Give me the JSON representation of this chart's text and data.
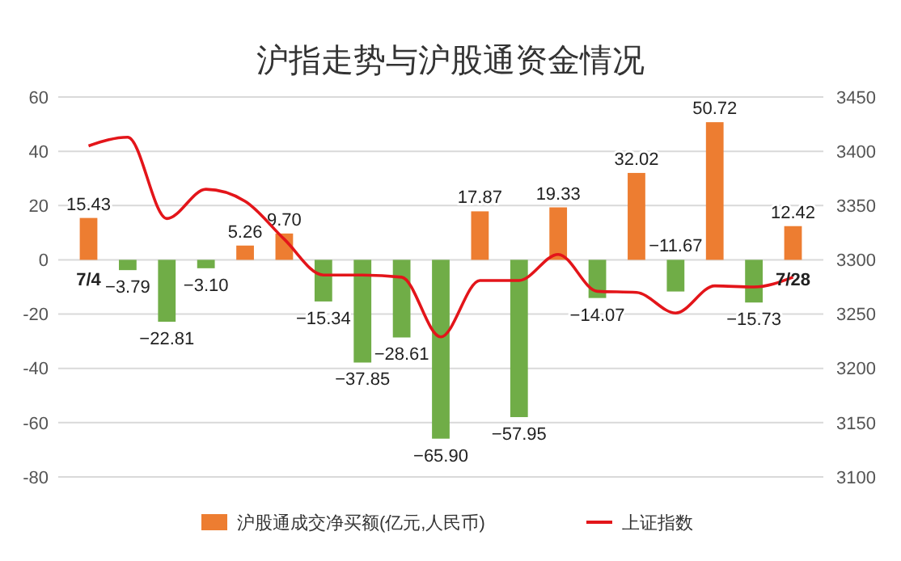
{
  "chart_data": {
    "type": "bar",
    "title": "沪指走势与沪股通资金情况",
    "categories": [
      "7/4",
      null,
      null,
      null,
      null,
      null,
      null,
      null,
      null,
      null,
      null,
      null,
      null,
      null,
      null,
      null,
      null,
      null,
      "7/28"
    ],
    "series": [
      {
        "name": "沪股通成交净买额(亿元,人民币)",
        "color": "#ed7d31",
        "colors": [
          "#ed7d31",
          "#70ad47",
          "#70ad47",
          "#70ad47",
          "#ed7d31",
          "#ed7d31",
          "#70ad47",
          "#70ad47",
          "#70ad47",
          "#70ad47",
          "#ed7d31",
          "#70ad47",
          "#ed7d31",
          "#70ad47",
          "#ed7d31",
          "#70ad47",
          "#ed7d31",
          "#70ad47",
          "#ed7d31"
        ],
        "values": [
          15.43,
          -3.79,
          -22.81,
          -3.1,
          5.26,
          9.7,
          -15.34,
          -37.85,
          -28.61,
          -65.9,
          17.87,
          -57.95,
          19.33,
          -14.07,
          32.02,
          -11.67,
          50.72,
          -15.73,
          12.42
        ],
        "value_labels": [
          "15.43",
          "−3.79",
          "−22.81",
          "−3.10",
          "5.26",
          "9.70",
          "−15.34",
          "−37.85",
          "−28.61",
          "−65.90",
          "17.87",
          "−57.95",
          "19.33",
          "−14.07",
          "32.02",
          "−11.67",
          "50.72",
          "−15.73",
          "12.42"
        ]
      },
      {
        "name": "上证指数",
        "type": "line",
        "axis": "y2",
        "color": "#e3151a",
        "values": [
          3405,
          3413,
          3338,
          3365,
          3354,
          3319,
          3286,
          3286,
          3284,
          3229,
          3281,
          3281,
          3305,
          3271,
          3270,
          3251,
          3276,
          3275,
          3284
        ]
      }
    ],
    "ylim": [
      -80,
      60
    ],
    "yticks": [
      -80,
      -60,
      -40,
      -20,
      0,
      20,
      40,
      60
    ],
    "y2lim": [
      3100,
      3450
    ],
    "y2ticks": [
      3100,
      3150,
      3200,
      3250,
      3300,
      3350,
      3400,
      3450
    ],
    "grid": "y",
    "legend": "bottom",
    "marker": "none",
    "line_style": "solid"
  }
}
